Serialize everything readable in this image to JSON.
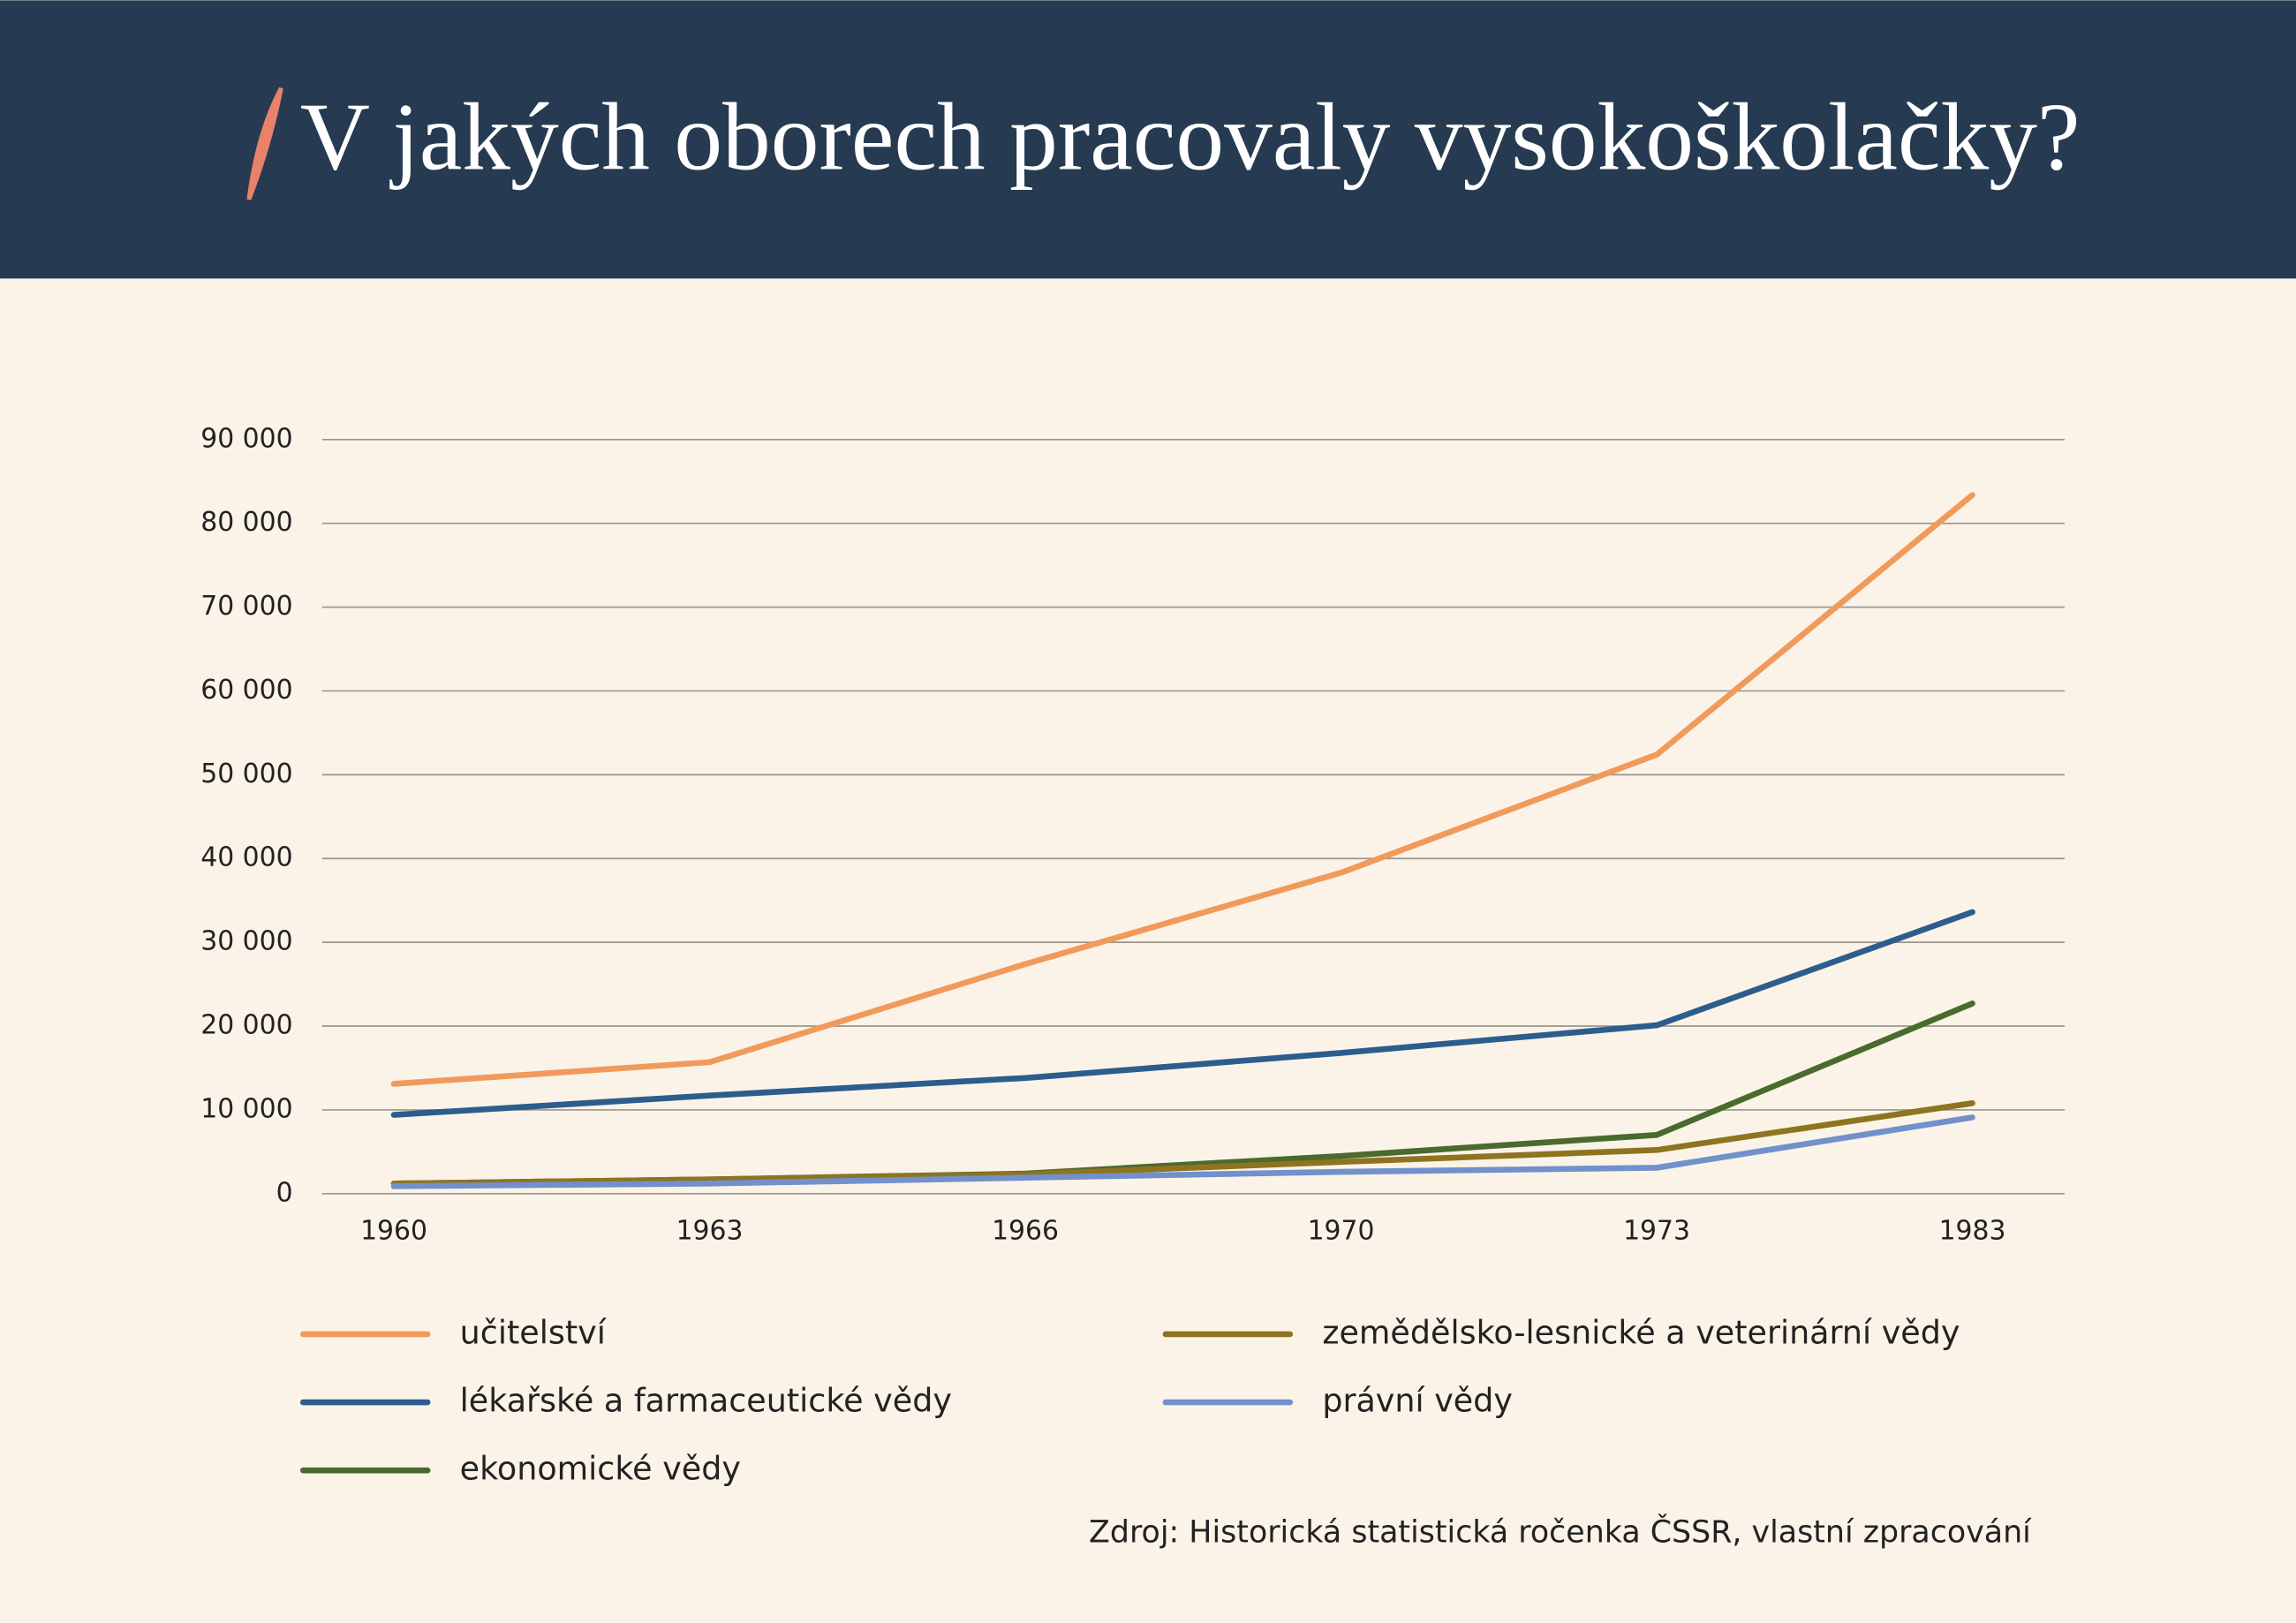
{
  "chart_data": {
    "type": "line",
    "title": "V jakých oborech pracovaly vysokoškolačky?",
    "source": "Zdroj: Historická statistická ročenka ČSSR, vlastní zpracování",
    "categories": [
      "1960",
      "1963",
      "1966",
      "1970",
      "1973",
      "1983"
    ],
    "series": [
      {
        "name": "učitelství",
        "color": "#f09a5c",
        "values": [
          13100,
          15700,
          27400,
          38300,
          52400,
          83400
        ]
      },
      {
        "name": "lékařské a farmaceutické vědy",
        "color": "#2c5d8c",
        "values": [
          9400,
          11700,
          13800,
          16800,
          20100,
          33600
        ]
      },
      {
        "name": "ekonomické vědy",
        "color": "#4a6a2e",
        "values": [
          1200,
          1700,
          2400,
          4500,
          7000,
          22700
        ]
      },
      {
        "name": "zemědělsko-lesnické a veterinární vědy",
        "color": "#8e7420",
        "values": [
          1200,
          1700,
          2300,
          3800,
          5200,
          10800
        ]
      },
      {
        "name": "právní vědy",
        "color": "#7190cc",
        "values": [
          900,
          1200,
          1900,
          2600,
          3100,
          9100
        ]
      }
    ],
    "ylim": [
      0,
      90000
    ],
    "yticks": [
      0,
      {
        "value": 10000,
        "label": "10 000"
      },
      {
        "value": 20000,
        "label": "20 000"
      },
      {
        "value": 30000,
        "label": "30 000"
      },
      {
        "value": 40000,
        "label": "40 000"
      },
      {
        "value": 50000,
        "label": "50 000"
      },
      {
        "value": 60000,
        "label": "60 000"
      },
      {
        "value": 70000,
        "label": "70 000"
      },
      {
        "value": 80000,
        "label": "80 000"
      },
      {
        "value": 90000,
        "label": "90 000"
      }
    ],
    "grid": true
  }
}
